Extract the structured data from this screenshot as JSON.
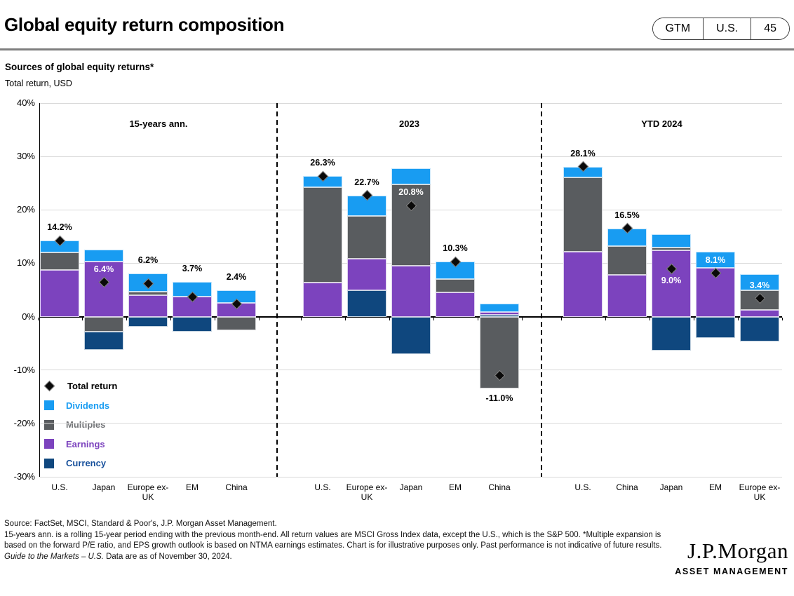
{
  "header": {
    "title": "Global equity return composition",
    "badge": {
      "gtm": "GTM",
      "region": "U.S.",
      "page": "45"
    }
  },
  "subtitle": {
    "line1": "Sources of global equity returns*",
    "line2": "Total return, USD"
  },
  "chart_data": {
    "type": "bar",
    "stacked": true,
    "unit": "%",
    "ylim": [
      -30,
      40
    ],
    "y_ticks": [
      "40%",
      "30%",
      "20%",
      "10%",
      "0%",
      "-10%",
      "-20%",
      "-30%"
    ],
    "grid": true,
    "colors": {
      "dividends": "#189CF2",
      "multiples": "#595C5F",
      "earnings": "#7C43BE",
      "currency": "#0F477E",
      "total_return": "#0A0A0A"
    },
    "legend": {
      "position": "inside-bottom-left",
      "items": [
        {
          "key": "total_return",
          "label": "Total return",
          "marker": "diamond",
          "color": "#0A0A0A",
          "text_color": "#000000"
        },
        {
          "key": "dividends",
          "label": "Dividends",
          "marker": "square",
          "color": "#189CF2",
          "text_color": "#189CF2"
        },
        {
          "key": "multiples",
          "label": "Multiples",
          "marker": "square",
          "color": "#595C5F",
          "text_color": "#737578"
        },
        {
          "key": "earnings",
          "label": "Earnings",
          "marker": "square",
          "color": "#7C43BE",
          "text_color": "#7C43BE"
        },
        {
          "key": "currency",
          "label": "Currency",
          "marker": "square",
          "color": "#0F477E",
          "text_color": "#17509B"
        }
      ]
    },
    "groups": [
      {
        "title": "15-years ann.",
        "bars": [
          {
            "category": "U.S.",
            "total": 14.2,
            "total_label": "14.2%",
            "label_style": "above",
            "segments": [
              {
                "type": "earnings",
                "value": 8.8
              },
              {
                "type": "multiples",
                "value": 3.2
              },
              {
                "type": "dividends",
                "value": 2.2
              }
            ]
          },
          {
            "category": "Japan",
            "total": 6.4,
            "total_label": "6.4%",
            "label_style": "inside",
            "segments": [
              {
                "type": "earnings",
                "value": 10.3
              },
              {
                "type": "dividends",
                "value": 2.3
              },
              {
                "type": "multiples",
                "value": -2.8
              },
              {
                "type": "currency",
                "value": -3.4
              }
            ]
          },
          {
            "category": "Europe ex-UK",
            "total": 6.2,
            "total_label": "6.2%",
            "label_style": "above",
            "segments": [
              {
                "type": "earnings",
                "value": 4.0
              },
              {
                "type": "multiples",
                "value": 0.7
              },
              {
                "type": "dividends",
                "value": 3.4
              },
              {
                "type": "currency",
                "value": -1.9
              }
            ]
          },
          {
            "category": "EM",
            "total": 3.7,
            "total_label": "3.7%",
            "label_style": "above",
            "segments": [
              {
                "type": "earnings",
                "value": 3.7
              },
              {
                "type": "dividends",
                "value": 2.8
              },
              {
                "type": "currency",
                "value": -2.8
              }
            ]
          },
          {
            "category": "China",
            "total": 2.4,
            "total_label": "2.4%",
            "label_style": "above",
            "segments": [
              {
                "type": "earnings",
                "value": 2.6
              },
              {
                "type": "dividends",
                "value": 2.4
              },
              {
                "type": "multiples",
                "value": -2.6
              }
            ]
          }
        ]
      },
      {
        "title": "2023",
        "bars": [
          {
            "category": "U.S.",
            "total": 26.3,
            "total_label": "26.3%",
            "label_style": "above",
            "segments": [
              {
                "type": "earnings",
                "value": 6.4
              },
              {
                "type": "multiples",
                "value": 17.8
              },
              {
                "type": "dividends",
                "value": 2.1
              }
            ]
          },
          {
            "category": "Europe ex-UK",
            "total": 22.7,
            "total_label": "22.7%",
            "label_style": "above",
            "segments": [
              {
                "type": "currency",
                "value": 4.9
              },
              {
                "type": "earnings",
                "value": 5.9
              },
              {
                "type": "multiples",
                "value": 8.1
              },
              {
                "type": "dividends",
                "value": 3.8
              }
            ]
          },
          {
            "category": "Japan",
            "total": 20.8,
            "total_label": "20.8%",
            "label_style": "inside",
            "segments": [
              {
                "type": "earnings",
                "value": 9.5
              },
              {
                "type": "multiples",
                "value": 15.2
              },
              {
                "type": "dividends",
                "value": 3.1
              },
              {
                "type": "currency",
                "value": -7.0
              }
            ]
          },
          {
            "category": "EM",
            "total": 10.3,
            "total_label": "10.3%",
            "label_style": "above",
            "segments": [
              {
                "type": "earnings",
                "value": 4.6
              },
              {
                "type": "multiples",
                "value": 2.5
              },
              {
                "type": "dividends",
                "value": 3.2
              }
            ]
          },
          {
            "category": "China",
            "total": -11.0,
            "total_label": "-11.0%",
            "label_style": "below",
            "segments": [
              {
                "type": "currency",
                "value": 0.4
              },
              {
                "type": "earnings",
                "value": 0.4
              },
              {
                "type": "dividends",
                "value": 1.6
              },
              {
                "type": "multiples",
                "value": -13.4
              }
            ]
          }
        ]
      },
      {
        "title": "YTD 2024",
        "bars": [
          {
            "category": "U.S.",
            "total": 28.1,
            "total_label": "28.1%",
            "label_style": "above",
            "segments": [
              {
                "type": "earnings",
                "value": 12.1
              },
              {
                "type": "multiples",
                "value": 14.0
              },
              {
                "type": "dividends",
                "value": 2.0
              }
            ]
          },
          {
            "category": "China",
            "total": 16.5,
            "total_label": "16.5%",
            "label_style": "above",
            "segments": [
              {
                "type": "earnings",
                "value": 7.8
              },
              {
                "type": "multiples",
                "value": 5.4
              },
              {
                "type": "dividends",
                "value": 3.3
              }
            ]
          },
          {
            "category": "Japan",
            "total": 9.0,
            "total_label": "9.0%",
            "label_style": "inside-below",
            "segments": [
              {
                "type": "earnings",
                "value": 12.4
              },
              {
                "type": "multiples",
                "value": 0.5
              },
              {
                "type": "dividends",
                "value": 2.5
              },
              {
                "type": "currency",
                "value": -6.4
              }
            ]
          },
          {
            "category": "EM",
            "total": 8.1,
            "total_label": "8.1%",
            "label_style": "inside",
            "segments": [
              {
                "type": "earnings",
                "value": 9.2
              },
              {
                "type": "dividends",
                "value": 2.9
              },
              {
                "type": "currency",
                "value": -4.0
              }
            ]
          },
          {
            "category": "Europe ex-UK",
            "total": 3.4,
            "total_label": "3.4%",
            "label_style": "inside",
            "segments": [
              {
                "type": "earnings",
                "value": 1.2
              },
              {
                "type": "multiples",
                "value": 3.7
              },
              {
                "type": "dividends",
                "value": 3.1
              },
              {
                "type": "currency",
                "value": -4.6
              }
            ]
          }
        ]
      }
    ]
  },
  "footnote": {
    "source": "Source: FactSet, MSCI, Standard & Poor's, J.P. Morgan Asset Management.",
    "note": "15-years ann. is a rolling 15-year period ending with the previous month-end. All return values are MSCI Gross Index data, except the U.S., which is the S&P 500. *Multiple expansion is based on the forward P/E ratio, and EPS growth outlook is based on NTMA earnings estimates. Chart is for illustrative purposes only. Past performance is not indicative of future results.",
    "gtm_italic": "Guide to the Markets – U.S.",
    "gtm_rest": " Data are as of November 30, 2024."
  },
  "logo": {
    "name": "J.P.Morgan",
    "sub": "ASSET MANAGEMENT"
  }
}
